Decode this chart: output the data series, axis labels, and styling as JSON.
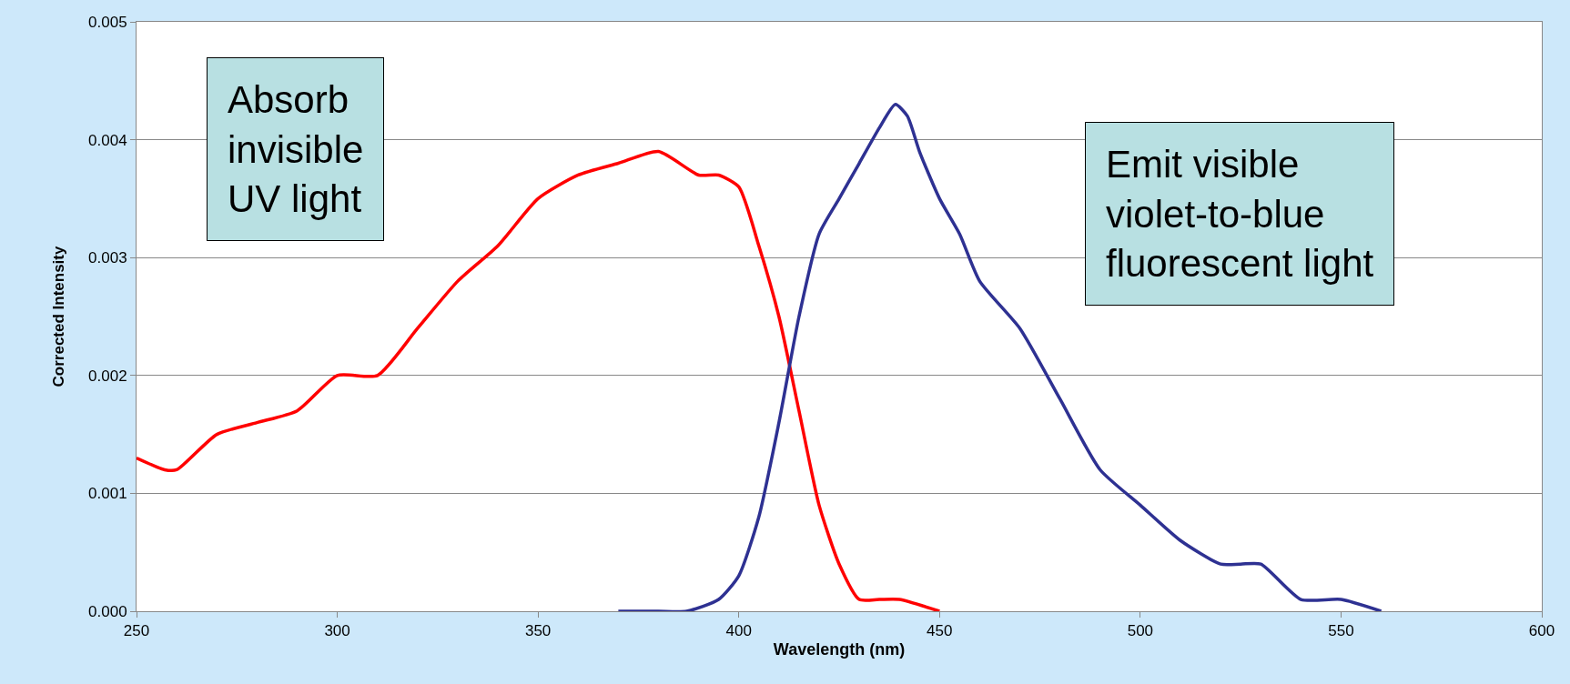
{
  "chart_data": {
    "type": "line",
    "xlabel": "Wavelength (nm)",
    "ylabel": "Corrected Intensity",
    "xlim": [
      250,
      600
    ],
    "xticks": [
      250,
      300,
      350,
      400,
      450,
      500,
      550,
      600
    ],
    "ylim": [
      0,
      0.005
    ],
    "yticks": [
      {
        "value": 0,
        "label": "0.000"
      },
      {
        "value": 0.001,
        "label": "0.001"
      },
      {
        "value": 0.002,
        "label": "0.002"
      },
      {
        "value": 0.003,
        "label": "0.003"
      },
      {
        "value": 0.004,
        "label": "0.004"
      },
      {
        "value": 0.005,
        "label": "0.005"
      }
    ],
    "grid": "y",
    "marker": "none",
    "line_style": "solid",
    "series": [
      {
        "color": "#ff0000",
        "x": [
          250,
          257,
          260,
          270,
          280,
          290,
          300,
          310,
          320,
          330,
          340,
          350,
          360,
          370,
          380,
          390,
          395,
          400,
          405,
          410,
          415,
          420,
          425,
          430,
          435,
          440,
          450
        ],
        "values": [
          0.0013,
          0.0012,
          0.0012,
          0.0015,
          0.0016,
          0.0017,
          0.002,
          0.002,
          0.0024,
          0.0028,
          0.0031,
          0.0035,
          0.0037,
          0.0038,
          0.0039,
          0.0037,
          0.0037,
          0.0036,
          0.0031,
          0.0025,
          0.0017,
          0.0009,
          0.0004,
          0.0001,
          0.0001,
          0.0001,
          0
        ]
      },
      {
        "color": "#2e3192",
        "x": [
          370,
          380,
          387,
          395,
          400,
          405,
          410,
          415,
          420,
          425,
          430,
          435,
          439,
          442,
          445,
          450,
          455,
          460,
          470,
          480,
          490,
          500,
          510,
          520,
          525,
          530,
          540,
          550,
          560
        ],
        "values": [
          0,
          0,
          0,
          0.0001,
          0.0003,
          0.0008,
          0.0016,
          0.0025,
          0.0032,
          0.0035,
          0.0038,
          0.0041,
          0.0043,
          0.0042,
          0.0039,
          0.0035,
          0.0032,
          0.0028,
          0.0024,
          0.0018,
          0.0012,
          0.0009,
          0.0006,
          0.0004,
          0.0004,
          0.0004,
          0.0001,
          0.0001,
          0
        ]
      }
    ],
    "annotations": [
      "Absorb\ninvisible\nUV light",
      "Emit visible\nviolet-to-blue\nfluorescent light"
    ]
  }
}
